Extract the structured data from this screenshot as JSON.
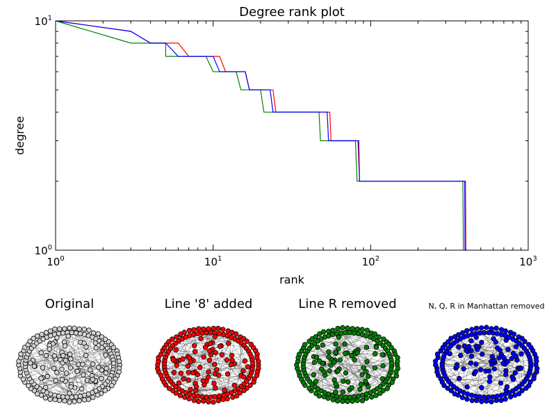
{
  "chart_data": [
    {
      "type": "line",
      "title": "Degree rank plot",
      "xlabel": "rank",
      "ylabel": "degree",
      "xscale": "log",
      "yscale": "log",
      "xlim": [
        1,
        1000
      ],
      "ylim": [
        1,
        10
      ],
      "xtick_labels": [
        {
          "value": 1,
          "base": "10",
          "exp": "0"
        },
        {
          "value": 10,
          "base": "10",
          "exp": "1"
        },
        {
          "value": 100,
          "base": "10",
          "exp": "2"
        },
        {
          "value": 1000,
          "base": "10",
          "exp": "3"
        }
      ],
      "ytick_labels": [
        {
          "value": 1,
          "base": "10",
          "exp": "0"
        },
        {
          "value": 10,
          "base": "10",
          "exp": "1"
        }
      ],
      "grid": false,
      "legend": "none",
      "series": [
        {
          "color": "#ff0000",
          "points": [
            [
              1,
              10
            ],
            [
              3,
              9
            ],
            [
              4,
              8
            ],
            [
              6,
              8
            ],
            [
              7,
              7
            ],
            [
              11,
              7
            ],
            [
              12,
              6
            ],
            [
              16,
              6
            ],
            [
              17,
              5
            ],
            [
              24,
              5
            ],
            [
              25,
              4
            ],
            [
              55,
              4
            ],
            [
              56,
              3
            ],
            [
              83,
              3
            ],
            [
              85,
              2
            ],
            [
              400,
              2
            ],
            [
              402,
              1
            ],
            [
              410,
              1
            ]
          ]
        },
        {
          "color": "#008000",
          "points": [
            [
              1,
              10
            ],
            [
              3,
              8
            ],
            [
              5,
              8
            ],
            [
              5,
              7
            ],
            [
              9,
              7
            ],
            [
              10,
              6
            ],
            [
              14,
              6
            ],
            [
              15,
              5
            ],
            [
              20,
              5
            ],
            [
              21,
              4
            ],
            [
              47,
              4
            ],
            [
              48,
              3
            ],
            [
              80,
              3
            ],
            [
              82,
              2
            ],
            [
              385,
              2
            ],
            [
              388,
              1
            ]
          ]
        },
        {
          "color": "#0000ff",
          "points": [
            [
              1,
              10
            ],
            [
              3,
              9
            ],
            [
              4,
              8
            ],
            [
              5,
              8
            ],
            [
              6,
              7
            ],
            [
              10,
              7
            ],
            [
              11,
              6
            ],
            [
              16,
              6
            ],
            [
              17,
              5
            ],
            [
              23,
              5
            ],
            [
              24,
              4
            ],
            [
              53,
              4
            ],
            [
              54,
              3
            ],
            [
              84,
              3
            ],
            [
              85,
              2
            ],
            [
              395,
              2
            ],
            [
              397,
              1
            ],
            [
              410,
              1
            ]
          ]
        }
      ]
    }
  ],
  "subplots": [
    {
      "title": "Original",
      "node_color": "#d3d3d3"
    },
    {
      "title": "Line '8' added",
      "node_color": "#ff0000"
    },
    {
      "title": "Line R removed",
      "node_color": "#008000"
    },
    {
      "title": "N, Q, R in Manhattan removed",
      "node_color": "#0000ff"
    }
  ]
}
